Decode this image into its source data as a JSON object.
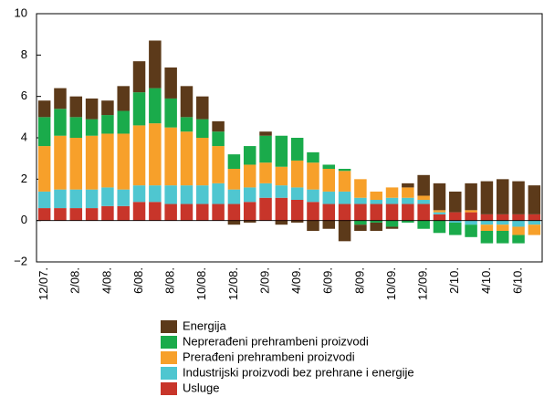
{
  "chart_data": {
    "type": "stacked_bar",
    "categories": [
      "12/07.",
      null,
      "2/08.",
      null,
      "4/08.",
      null,
      "6/08.",
      null,
      "8/08.",
      null,
      "10/08.",
      null,
      "12/08.",
      null,
      "2/09.",
      null,
      "4/09.",
      null,
      "6/09.",
      null,
      "8/09.",
      null,
      "10/09.",
      null,
      "12/09.",
      null,
      "2/10.",
      null,
      "4/10.",
      null,
      "6/10.",
      null
    ],
    "series": [
      {
        "name": "Usluge",
        "color": "#c8352a",
        "values": [
          0.6,
          0.6,
          0.6,
          0.6,
          0.7,
          0.7,
          0.9,
          0.9,
          0.8,
          0.8,
          0.8,
          0.8,
          0.8,
          0.9,
          1.1,
          1.1,
          1.0,
          0.9,
          0.8,
          0.8,
          0.8,
          0.8,
          0.8,
          0.8,
          0.8,
          0.3,
          0.4,
          0.4,
          0.3,
          0.3,
          0.3,
          0.3
        ]
      },
      {
        "name": "Industrijski proizvodi bez prehrane i energije",
        "color": "#4fc6d0",
        "values": [
          0.8,
          0.9,
          0.9,
          0.9,
          0.9,
          0.8,
          0.8,
          0.8,
          0.9,
          0.9,
          0.9,
          1.0,
          0.7,
          0.7,
          0.7,
          0.6,
          0.6,
          0.6,
          0.6,
          0.6,
          0.3,
          0.2,
          0.3,
          0.3,
          0.2,
          0.1,
          -0.1,
          -0.2,
          -0.2,
          -0.2,
          -0.3,
          -0.2
        ]
      },
      {
        "name": "Prerađeni prehrambeni proizvodi",
        "color": "#f7a02a",
        "values": [
          2.2,
          2.6,
          2.5,
          2.6,
          2.6,
          2.7,
          2.9,
          3.0,
          2.8,
          2.6,
          2.3,
          1.8,
          1.0,
          1.1,
          1.0,
          0.9,
          1.3,
          1.3,
          1.1,
          1.0,
          0.9,
          0.4,
          0.5,
          0.5,
          0.2,
          0.1,
          0.0,
          0.1,
          -0.3,
          -0.3,
          -0.4,
          -0.5
        ]
      },
      {
        "name": "Neprerađeni prehrambeni proizvodi",
        "color": "#1aab4b",
        "values": [
          1.4,
          1.3,
          1.0,
          0.8,
          0.9,
          1.1,
          1.6,
          1.7,
          1.4,
          0.7,
          0.9,
          0.7,
          0.7,
          0.9,
          1.3,
          1.5,
          1.1,
          0.5,
          0.2,
          0.1,
          -0.2,
          -0.1,
          -0.3,
          -0.1,
          -0.4,
          -0.6,
          -0.6,
          -0.6,
          -0.6,
          -0.6,
          -0.4,
          0.0
        ]
      },
      {
        "name": "Energija",
        "color": "#5c3a1a",
        "values": [
          0.8,
          1.0,
          1.0,
          1.0,
          0.7,
          1.2,
          1.5,
          2.3,
          1.5,
          1.5,
          1.1,
          0.5,
          -0.2,
          -0.1,
          0.2,
          -0.2,
          -0.1,
          -0.5,
          -0.4,
          -1.0,
          -0.3,
          -0.4,
          -0.1,
          0.2,
          1.0,
          1.3,
          1.0,
          1.3,
          1.6,
          1.7,
          1.6,
          1.4
        ]
      }
    ],
    "ylim": [
      -2,
      10
    ],
    "yticks": [
      {
        "value": -2,
        "label": "−2"
      },
      0,
      2,
      4,
      6,
      8,
      10
    ]
  }
}
